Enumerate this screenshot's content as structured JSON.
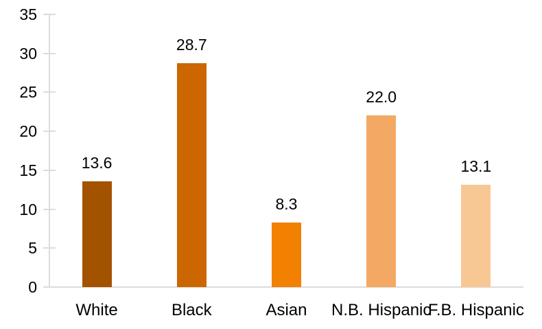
{
  "chart_data": {
    "type": "bar",
    "title": "",
    "xlabel": "",
    "ylabel": "",
    "categories": [
      "White",
      "Black",
      "Asian",
      "N.B. Hispanic",
      "F.B. Hispanic"
    ],
    "values": [
      13.6,
      28.7,
      8.3,
      22.0,
      13.1
    ],
    "data_labels": [
      "13.6",
      "28.7",
      "8.3",
      "22.0",
      "13.1"
    ],
    "bar_colors": [
      "#A35200",
      "#CB6601",
      "#F28001",
      "#F3A963",
      "#F7C794"
    ],
    "ylim": [
      0,
      35
    ],
    "yticks": [
      0,
      5,
      10,
      15,
      20,
      25,
      30,
      35
    ],
    "grid": false,
    "legend": false,
    "axis_color": "#DCDCDC",
    "text_color": "#000000",
    "background_color": "#FFFFFF"
  }
}
